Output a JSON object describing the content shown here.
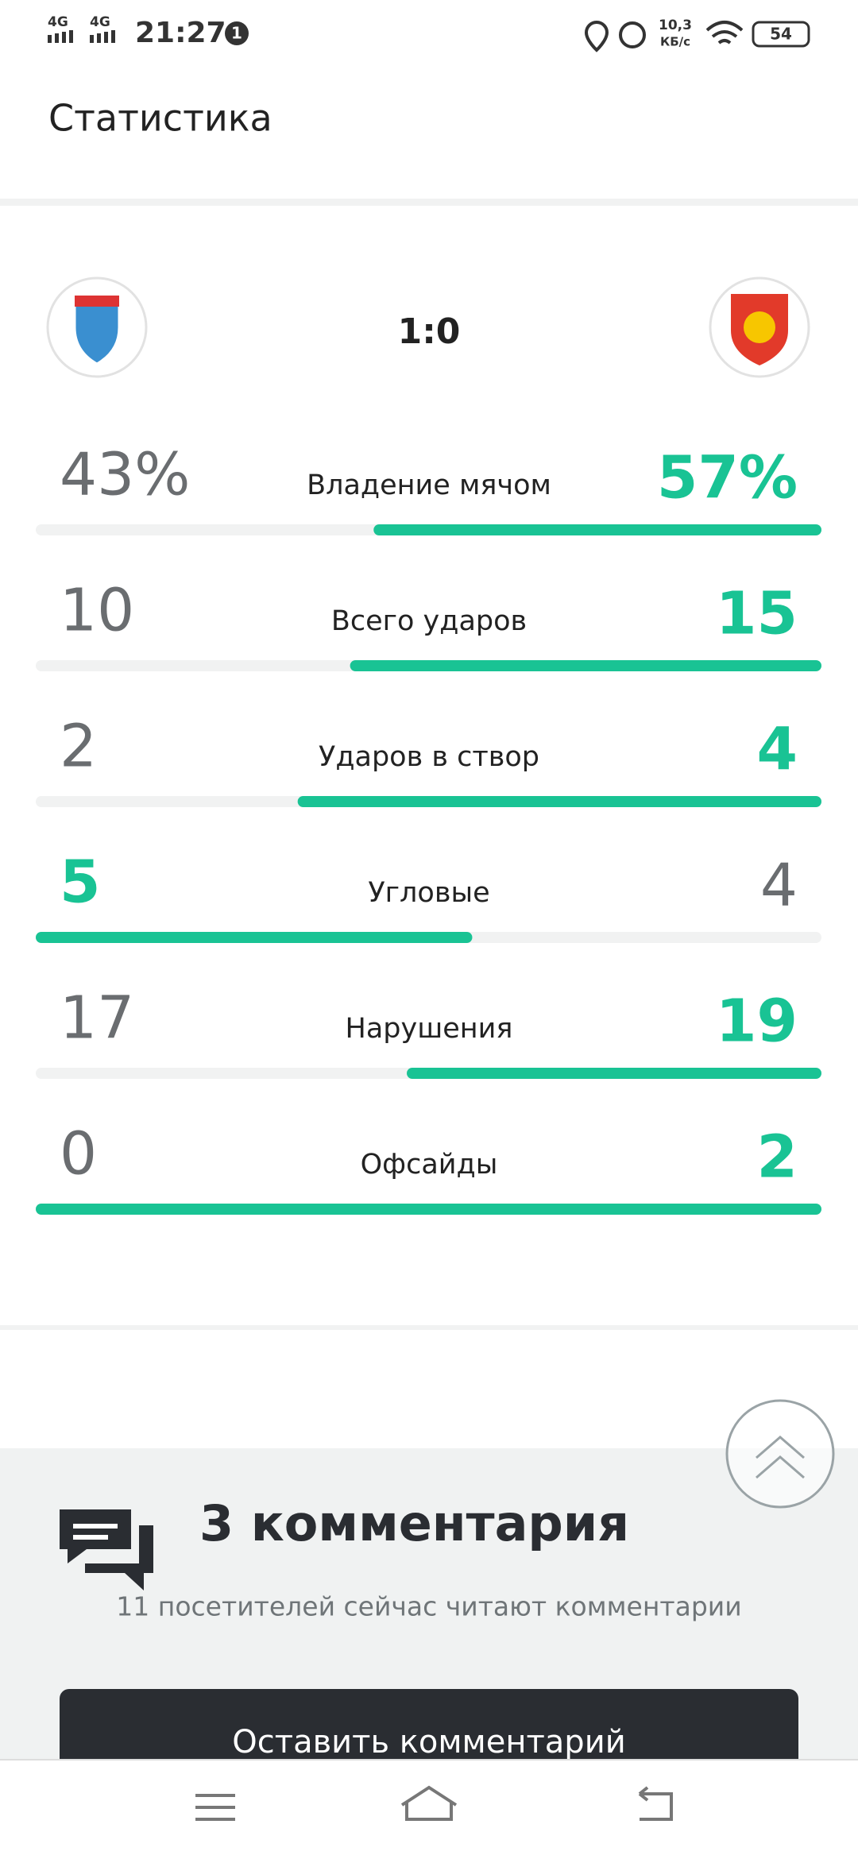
{
  "status_bar": {
    "network_1": "4G",
    "network_2": "4G",
    "time": "21:27",
    "notification_count": "1",
    "speed": "10,3",
    "speed_unit": "КБ/с",
    "battery": "54"
  },
  "header": {
    "title": "Статистика"
  },
  "match": {
    "score": "1:0"
  },
  "stats": [
    {
      "label": "Владение мячом",
      "home": 43,
      "away": 57,
      "home_label": "43%",
      "away_label": "57%"
    },
    {
      "label": "Всего ударов",
      "home": 10,
      "away": 15
    },
    {
      "label": "Ударов в створ",
      "home": 2,
      "away": 4
    },
    {
      "label": "Угловые",
      "home": 5,
      "away": 4
    },
    {
      "label": "Нарушения",
      "home": 17,
      "away": 19
    },
    {
      "label": "Офсайды",
      "home": 0,
      "away": 2
    }
  ],
  "comments": {
    "title": "3 комментария",
    "subtitle": "11 посетителей сейчас читают комментарии",
    "button": "Оставить комментарий"
  }
}
